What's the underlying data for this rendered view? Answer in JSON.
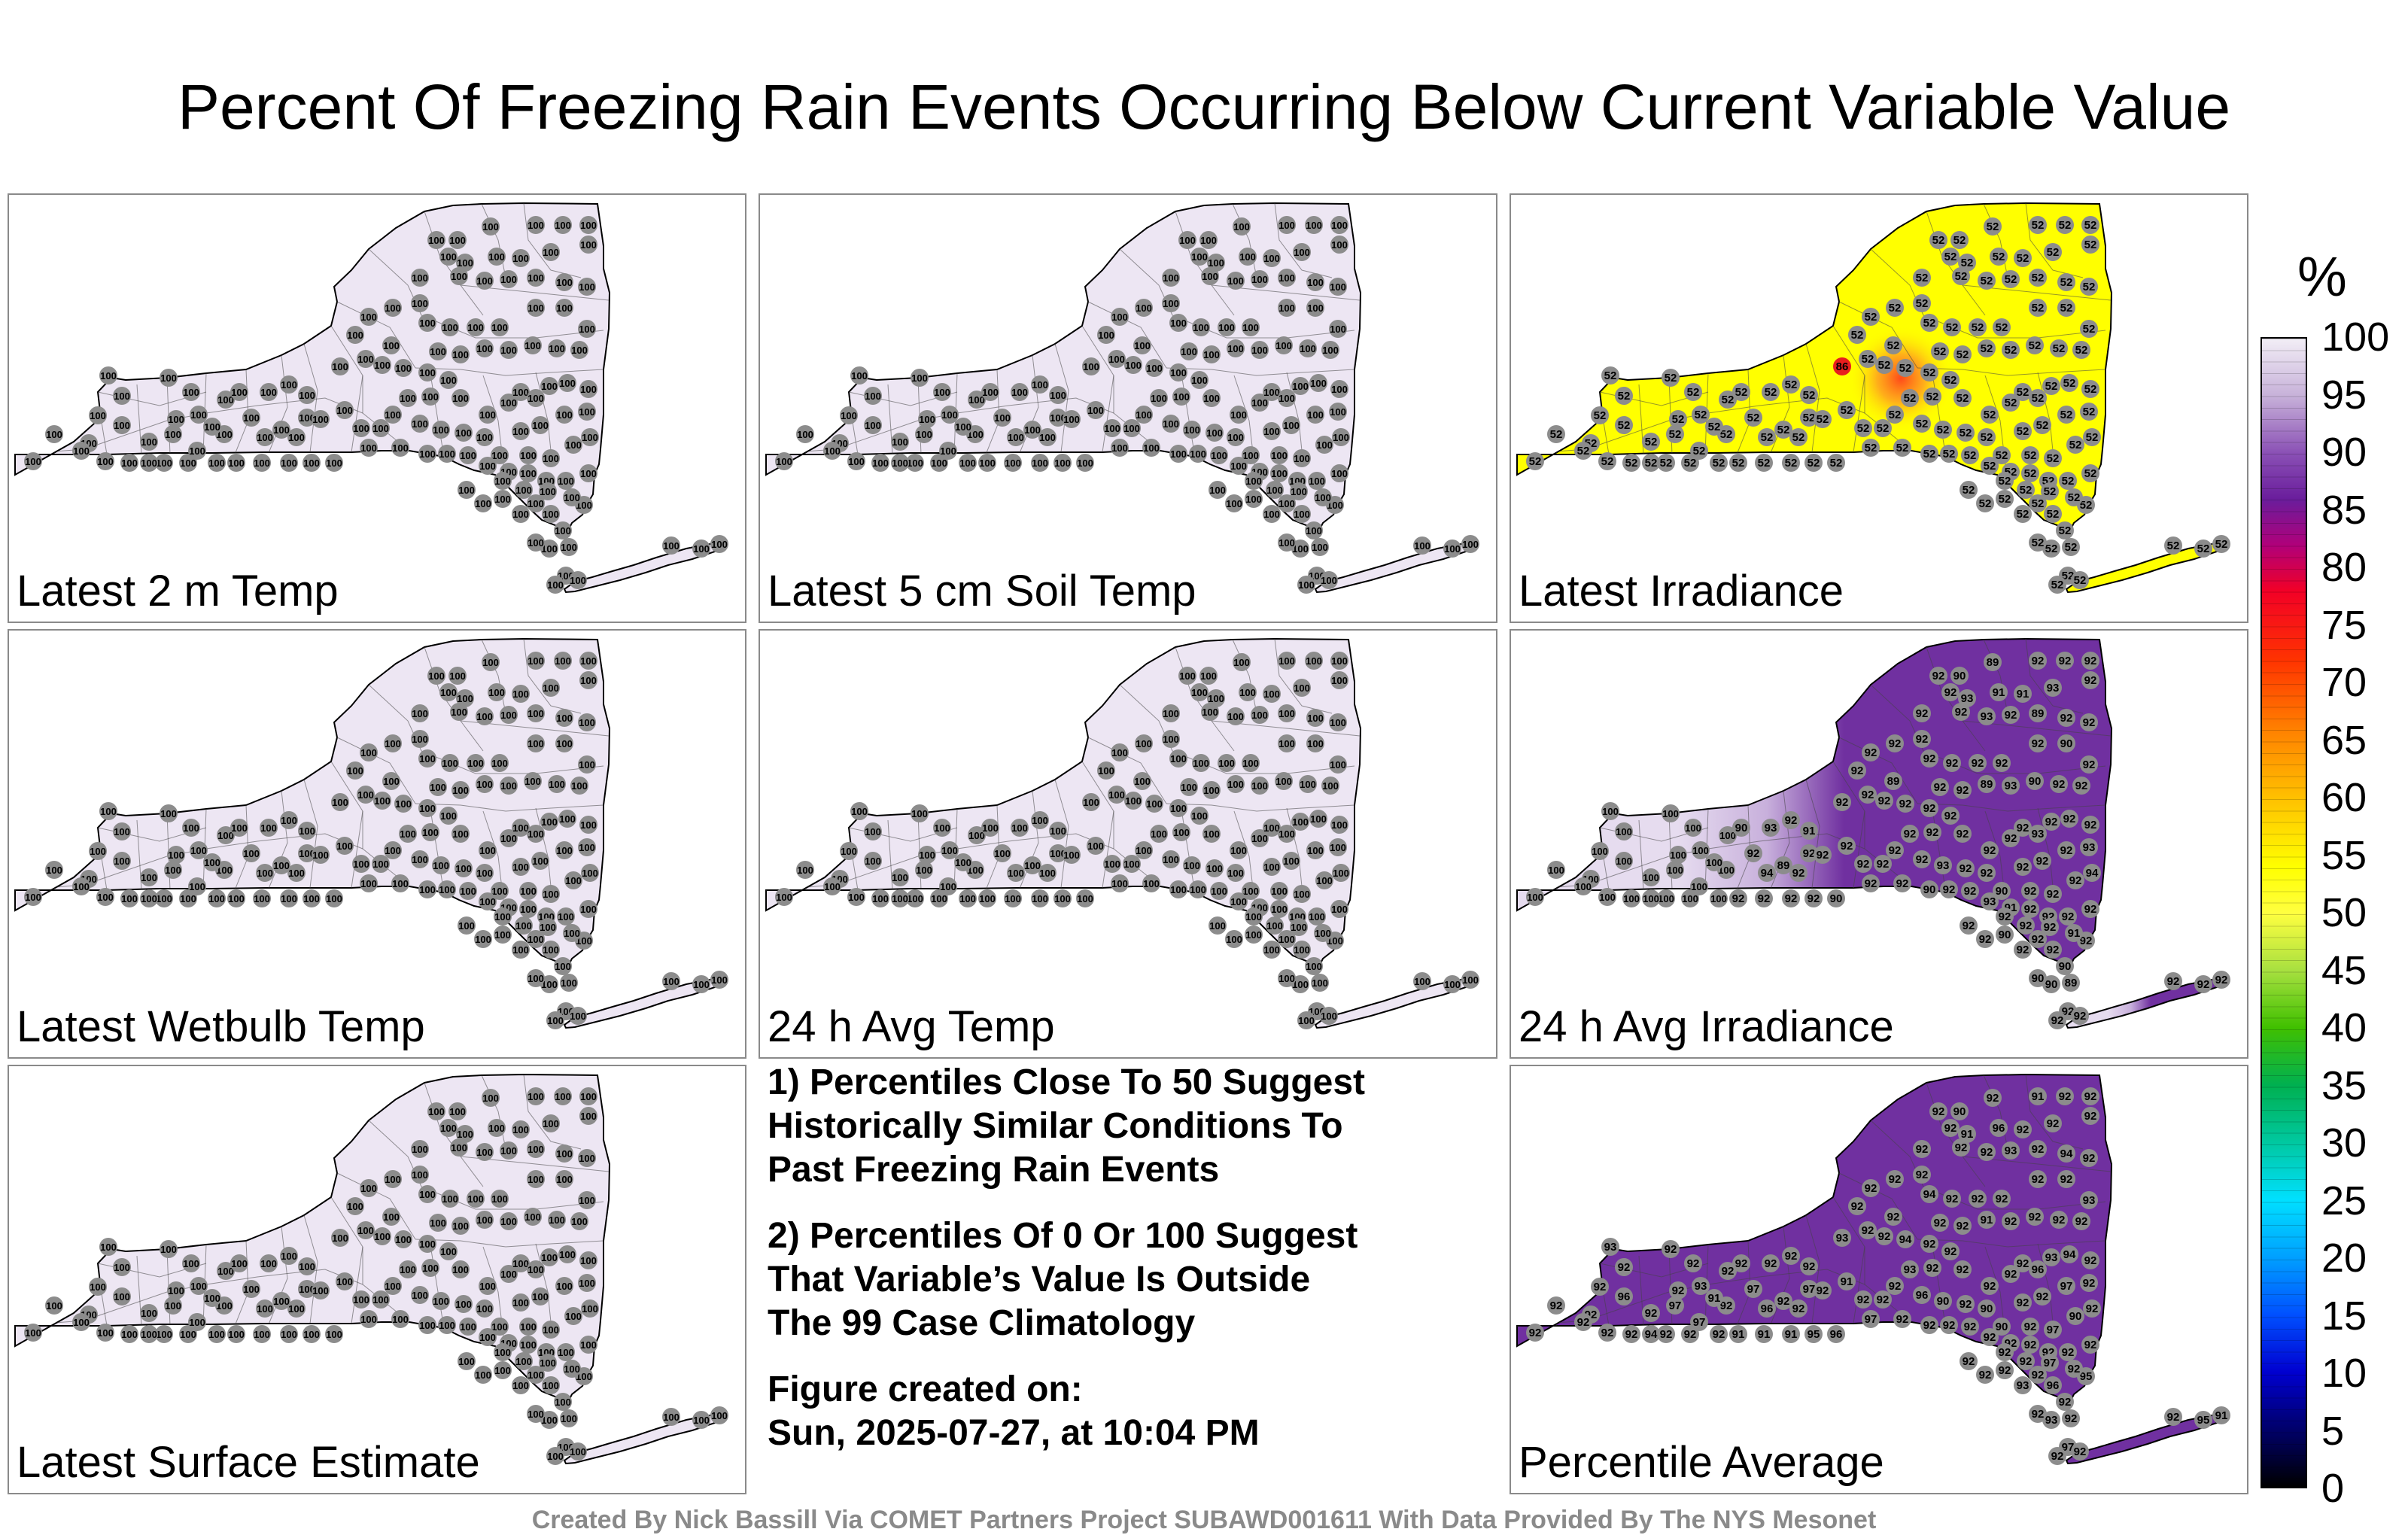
{
  "title": "Percent Of Freezing Rain Events Occurring Below Current Variable Value",
  "panels": [
    {
      "label": "Latest 2 m Temp",
      "fill": "#ede6f3",
      "value": "100",
      "mode": "uniform"
    },
    {
      "label": "Latest 5 cm Soil Temp",
      "fill": "#ede6f3",
      "value": "100",
      "mode": "uniform"
    },
    {
      "label": "Latest Irradiance",
      "fill": "#ffff00",
      "value": "52",
      "mode": "irradiance",
      "hotspot_value": "86",
      "hotspot_color": "#ff4a1a"
    },
    {
      "label": "Latest Wetbulb Temp",
      "fill": "#ede6f3",
      "value": "100",
      "mode": "uniform"
    },
    {
      "label": "24 h Avg Temp",
      "fill": "#ede6f3",
      "value": "100",
      "mode": "uniform"
    },
    {
      "label": "24 h Avg Irradiance",
      "fill": "#7030a0",
      "value": "92",
      "mode": "gradient",
      "west_fill": "#e6dcef",
      "west_value": "100"
    },
    {
      "label": "Latest Surface Estimate",
      "fill": "#ede6f3",
      "value": "100",
      "mode": "uniform"
    },
    {
      "label": "Percentile Average",
      "fill": "#7030a0",
      "value": "92",
      "mode": "average"
    }
  ],
  "notes": {
    "note1": "1) Percentiles Close To 50 Suggest\nHistorically Similar Conditions To\nPast Freezing Rain Events",
    "note2": "2) Percentiles Of 0 Or 100 Suggest\nThat Variable’s Value Is Outside\nThe 99 Case Climatology",
    "created": "Figure created on:\nSun, 2025-07-27, at 10:04 PM"
  },
  "colorbar": {
    "unit": "%",
    "ticks": [
      "100",
      "95",
      "90",
      "85",
      "80",
      "75",
      "70",
      "65",
      "60",
      "55",
      "50",
      "45",
      "40",
      "35",
      "30",
      "25",
      "20",
      "15",
      "10",
      "5",
      "0"
    ],
    "stops": [
      {
        "pct": 0,
        "color": "#f2eef6"
      },
      {
        "pct": 5,
        "color": "#c7b1d9"
      },
      {
        "pct": 10,
        "color": "#8a50b5"
      },
      {
        "pct": 14,
        "color": "#6a1d9c"
      },
      {
        "pct": 18,
        "color": "#b0007a"
      },
      {
        "pct": 22,
        "color": "#f20026"
      },
      {
        "pct": 28,
        "color": "#ff3300"
      },
      {
        "pct": 34,
        "color": "#ff8000"
      },
      {
        "pct": 40,
        "color": "#ffc000"
      },
      {
        "pct": 46,
        "color": "#ffff00"
      },
      {
        "pct": 50,
        "color": "#ffff40"
      },
      {
        "pct": 55,
        "color": "#a8e040"
      },
      {
        "pct": 60,
        "color": "#40c000"
      },
      {
        "pct": 65,
        "color": "#00b050"
      },
      {
        "pct": 70,
        "color": "#00c8a0"
      },
      {
        "pct": 75,
        "color": "#00e0ff"
      },
      {
        "pct": 80,
        "color": "#00a0ff"
      },
      {
        "pct": 85,
        "color": "#0050ff"
      },
      {
        "pct": 90,
        "color": "#0000d0"
      },
      {
        "pct": 95,
        "color": "#00006a"
      },
      {
        "pct": 100,
        "color": "#000000"
      }
    ]
  },
  "credit": "Created By Nick Bassill Via COMET Partners Project SUBAWD001611 With Data Provided By The NYS Mesonet"
}
